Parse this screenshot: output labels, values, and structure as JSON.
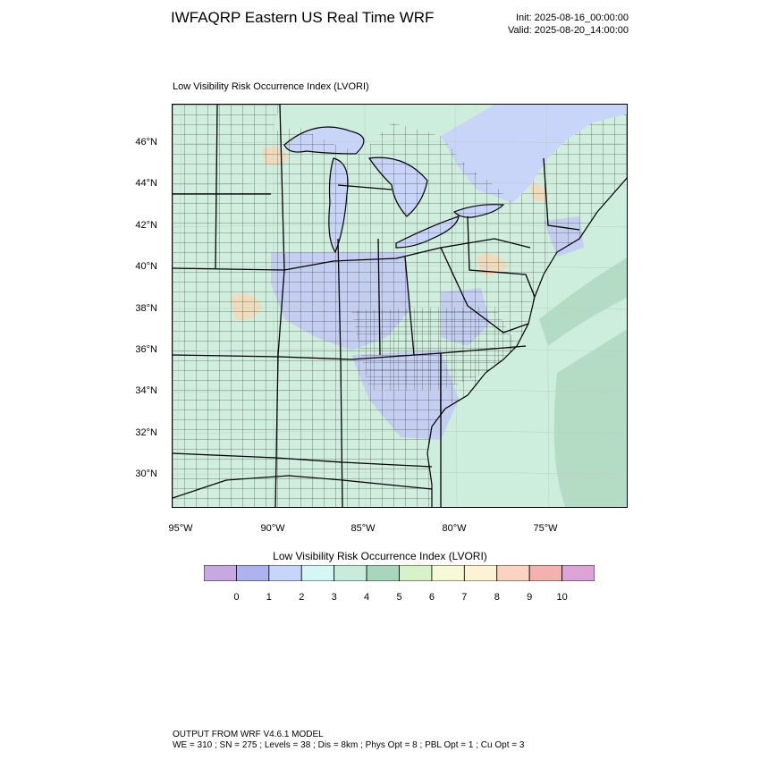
{
  "header": {
    "title": "IWFAQRP Eastern US Real Time WRF",
    "init": "Init: 2025-08-16_00:00:00",
    "valid": "Valid: 2025-08-20_14:00:00"
  },
  "map": {
    "subtitle": "Low Visibility Risk Occurrence Index   (LVORI)",
    "lat_labels": [
      "46°N",
      "44°N",
      "42°N",
      "40°N",
      "38°N",
      "36°N",
      "34°N",
      "32°N",
      "30°N"
    ],
    "lon_labels": [
      "95°W",
      "90°W",
      "85°W",
      "80°W",
      "75°W"
    ],
    "colors": {
      "water": "#c8d4f8",
      "land": "#cfeedd",
      "ocean": "#cdeedc",
      "ocean_dark": "#b4dcc4",
      "low_risk": "#c2c8f4",
      "high_risk": "#f3d8b8"
    }
  },
  "colorbar": {
    "title": "Low Visibility Risk Occurrence Index  (LVORI)",
    "tick_labels": [
      "0",
      "1",
      "2",
      "3",
      "4",
      "5",
      "6",
      "7",
      "8",
      "9",
      "10"
    ],
    "colors": [
      "#c8a8e0",
      "#aeb2ee",
      "#c6d6fb",
      "#d4f7f6",
      "#c7ecdc",
      "#a7d6bc",
      "#d7f1c8",
      "#f5f9d6",
      "#fdf3d4",
      "#fcd3c0",
      "#f3b1b0",
      "#dca4d6"
    ]
  },
  "footer": {
    "line1": "OUTPUT FROM WRF V4.6.1 MODEL",
    "line2": "WE = 310 ; SN = 275 ; Levels = 38 ; Dis = 8km ; Phys Opt = 8 ; PBL Opt = 1 ; Cu Opt = 3"
  }
}
